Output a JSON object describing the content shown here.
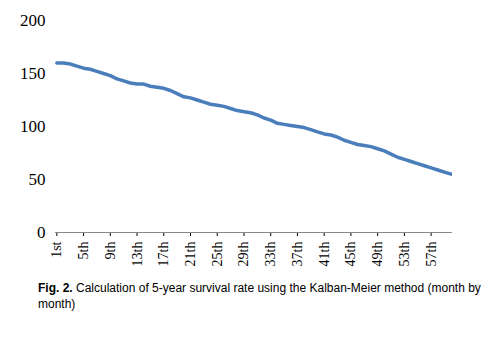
{
  "chart_data": {
    "type": "line",
    "caption": "Fig. 2. Calculation of 5-year survival rate using the Kalban-Meier method (month by month)",
    "categories": [
      "1st",
      null,
      null,
      null,
      "5th",
      null,
      null,
      null,
      "9th",
      null,
      null,
      null,
      "13th",
      null,
      null,
      null,
      "17th",
      null,
      null,
      null,
      "21th",
      null,
      null,
      null,
      "25th",
      null,
      null,
      null,
      "29th",
      null,
      null,
      null,
      "33th",
      null,
      null,
      null,
      "37th",
      null,
      null,
      null,
      "41th",
      null,
      null,
      null,
      "45th",
      null,
      null,
      null,
      "49th",
      null,
      null,
      null,
      "53th",
      null,
      null,
      null,
      "57th",
      null,
      null,
      null
    ],
    "values": [
      160,
      160,
      159,
      157,
      155,
      154,
      152,
      150,
      148,
      145,
      143,
      141,
      140,
      140,
      138,
      137,
      136,
      134,
      131,
      128,
      127,
      125,
      123,
      121,
      120,
      119,
      117,
      115,
      114,
      113,
      111,
      108,
      106,
      103,
      102,
      101,
      100,
      99,
      97,
      95,
      93,
      92,
      90,
      87,
      85,
      83,
      82,
      81,
      79,
      77,
      74,
      71,
      69,
      67,
      65,
      63,
      61,
      59,
      57,
      55
    ],
    "color": "#4a7ebb",
    "ylim": [
      0,
      200
    ],
    "yticks": [
      0,
      50,
      100,
      150,
      200
    ],
    "grid": false
  }
}
